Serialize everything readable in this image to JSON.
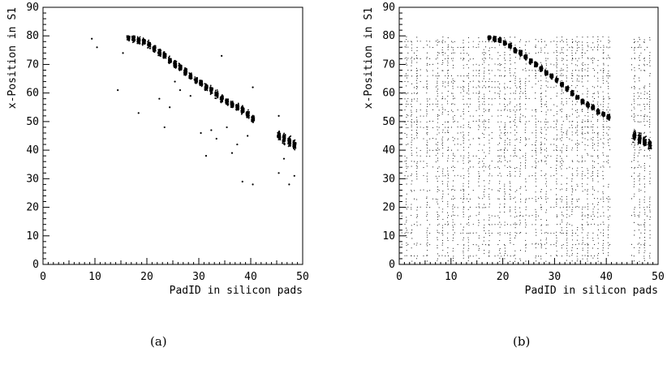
{
  "figure": {
    "panel_labels": [
      "(a)",
      "(b)"
    ]
  },
  "chart_data": [
    {
      "type": "scatter",
      "title": "",
      "xlabel": "PadID in silicon pads",
      "ylabel": "x-Position in S1",
      "xlim": [
        0,
        50
      ],
      "ylim": [
        0,
        90
      ],
      "xticks": [
        0,
        10,
        20,
        30,
        40,
        50
      ],
      "yticks": [
        0,
        10,
        20,
        30,
        40,
        50,
        60,
        70,
        80,
        90
      ],
      "grid": false,
      "legend": "none",
      "marker_color": "#000000",
      "main_band": {
        "description_pad_range": [
          15,
          40
        ],
        "points": [
          {
            "x": 16,
            "y": 79.5
          },
          {
            "x": 17,
            "y": 79
          },
          {
            "x": 18,
            "y": 78.5
          },
          {
            "x": 19,
            "y": 78
          },
          {
            "x": 20,
            "y": 77
          },
          {
            "x": 21,
            "y": 75.5
          },
          {
            "x": 22,
            "y": 74
          },
          {
            "x": 23,
            "y": 73
          },
          {
            "x": 24,
            "y": 71.5
          },
          {
            "x": 25,
            "y": 70
          },
          {
            "x": 26,
            "y": 69
          },
          {
            "x": 27,
            "y": 67.5
          },
          {
            "x": 28,
            "y": 66
          },
          {
            "x": 29,
            "y": 64.5
          },
          {
            "x": 30,
            "y": 63.5
          },
          {
            "x": 31,
            "y": 62
          },
          {
            "x": 32,
            "y": 61
          },
          {
            "x": 33,
            "y": 59.5
          },
          {
            "x": 34,
            "y": 58
          },
          {
            "x": 35,
            "y": 57
          },
          {
            "x": 36,
            "y": 56
          },
          {
            "x": 37,
            "y": 55
          },
          {
            "x": 38,
            "y": 54
          },
          {
            "x": 39,
            "y": 52.5
          },
          {
            "x": 40,
            "y": 51
          }
        ],
        "band_halfwidth": 2
      },
      "secondary_band": {
        "points": [
          {
            "x": 45,
            "y": 45
          },
          {
            "x": 46,
            "y": 44
          },
          {
            "x": 47,
            "y": 43
          },
          {
            "x": 48,
            "y": 42
          }
        ],
        "band_halfwidth": 3
      },
      "outliers": [
        {
          "x": 9,
          "y": 79
        },
        {
          "x": 10,
          "y": 76
        },
        {
          "x": 14,
          "y": 61
        },
        {
          "x": 15,
          "y": 74
        },
        {
          "x": 18,
          "y": 53
        },
        {
          "x": 22,
          "y": 58
        },
        {
          "x": 23,
          "y": 48
        },
        {
          "x": 24,
          "y": 55
        },
        {
          "x": 25,
          "y": 64
        },
        {
          "x": 26,
          "y": 61
        },
        {
          "x": 28,
          "y": 59
        },
        {
          "x": 30,
          "y": 46
        },
        {
          "x": 31,
          "y": 38
        },
        {
          "x": 32,
          "y": 47
        },
        {
          "x": 33,
          "y": 44
        },
        {
          "x": 34,
          "y": 73
        },
        {
          "x": 35,
          "y": 48
        },
        {
          "x": 36,
          "y": 39
        },
        {
          "x": 37,
          "y": 42
        },
        {
          "x": 38,
          "y": 29
        },
        {
          "x": 39,
          "y": 45
        },
        {
          "x": 40,
          "y": 62
        },
        {
          "x": 40,
          "y": 28
        },
        {
          "x": 45,
          "y": 52
        },
        {
          "x": 45,
          "y": 32
        },
        {
          "x": 46,
          "y": 37
        },
        {
          "x": 47,
          "y": 28
        },
        {
          "x": 48,
          "y": 31
        }
      ]
    },
    {
      "type": "scatter",
      "title": "",
      "xlabel": "PadID in silicon pads",
      "ylabel": "x-Position in S1",
      "xlim": [
        0,
        50
      ],
      "ylim": [
        0,
        90
      ],
      "xticks": [
        0,
        10,
        20,
        30,
        40,
        50
      ],
      "yticks": [
        0,
        10,
        20,
        30,
        40,
        50,
        60,
        70,
        80,
        90
      ],
      "grid": false,
      "legend": "none",
      "marker_color": "#000000",
      "main_band": {
        "points": [
          {
            "x": 17,
            "y": 79.5
          },
          {
            "x": 18,
            "y": 79
          },
          {
            "x": 19,
            "y": 78.5
          },
          {
            "x": 20,
            "y": 77.5
          },
          {
            "x": 21,
            "y": 76.5
          },
          {
            "x": 22,
            "y": 75
          },
          {
            "x": 23,
            "y": 74
          },
          {
            "x": 24,
            "y": 72.5
          },
          {
            "x": 25,
            "y": 71
          },
          {
            "x": 26,
            "y": 70
          },
          {
            "x": 27,
            "y": 68.5
          },
          {
            "x": 28,
            "y": 67
          },
          {
            "x": 29,
            "y": 66
          },
          {
            "x": 30,
            "y": 64.5
          },
          {
            "x": 31,
            "y": 63
          },
          {
            "x": 32,
            "y": 61.5
          },
          {
            "x": 33,
            "y": 60
          },
          {
            "x": 34,
            "y": 58.5
          },
          {
            "x": 35,
            "y": 57
          },
          {
            "x": 36,
            "y": 56
          },
          {
            "x": 37,
            "y": 55
          },
          {
            "x": 38,
            "y": 53.5
          },
          {
            "x": 39,
            "y": 52.5
          },
          {
            "x": 40,
            "y": 51.5
          }
        ],
        "band_halfwidth": 1.5
      },
      "secondary_band": {
        "points": [
          {
            "x": 45,
            "y": 45
          },
          {
            "x": 46,
            "y": 44
          },
          {
            "x": 47,
            "y": 43
          },
          {
            "x": 48,
            "y": 42
          }
        ],
        "band_halfwidth": 3
      },
      "noise_columns": [
        1,
        2,
        3,
        5,
        7,
        8,
        9,
        10,
        12,
        13,
        15,
        16,
        17,
        19,
        20,
        21,
        22,
        23,
        24,
        26,
        27,
        28,
        30,
        31,
        32,
        33,
        34,
        35,
        36,
        37,
        38,
        39,
        40,
        45,
        46,
        47,
        48
      ],
      "noise_rows": [
        3,
        7,
        11,
        14,
        17,
        20,
        23,
        26,
        31,
        34,
        36,
        38,
        40,
        42,
        44,
        46,
        48,
        50,
        52,
        54,
        56,
        58,
        60,
        62,
        64,
        66,
        68,
        70,
        72,
        74,
        76,
        78
      ],
      "noise_row_xrange": [
        0.5,
        48.5
      ],
      "noise_row_ymax_right": 79
    }
  ]
}
